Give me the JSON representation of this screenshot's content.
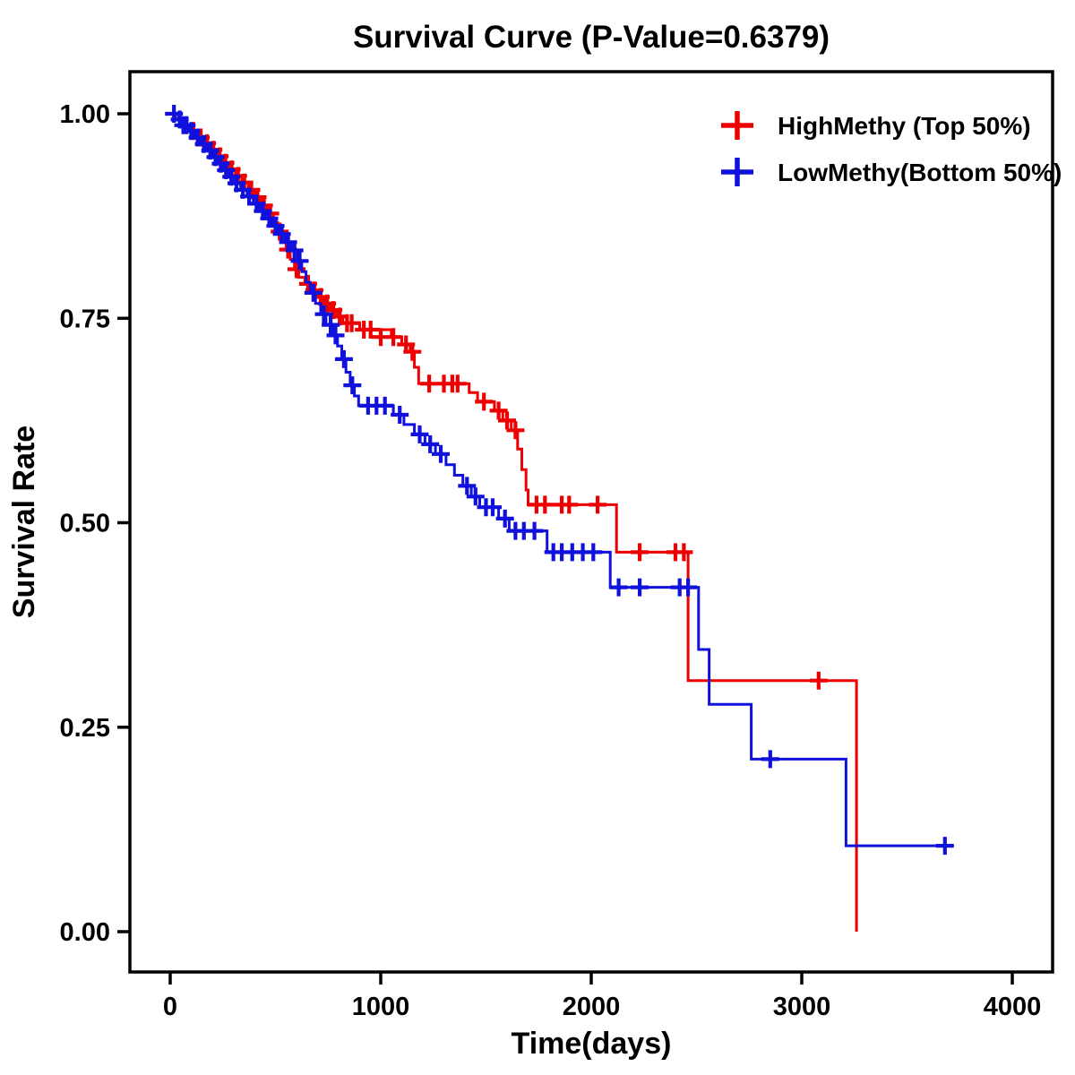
{
  "chart": {
    "title": "Survival Curve (P-Value=0.6379)"
  },
  "chart_data": {
    "type": "line",
    "subtype": "kaplan-meier-step",
    "title": "Survival Curve (P-Value=0.6379)",
    "p_value": 0.6379,
    "xlabel": "Time(days)",
    "ylabel": "Survival Rate",
    "xlim": [
      0,
      4000
    ],
    "ylim": [
      0.0,
      1.0
    ],
    "x_ticks": [
      0,
      1000,
      2000,
      3000,
      4000
    ],
    "y_ticks": [
      0.0,
      0.25,
      0.5,
      0.75,
      1.0
    ],
    "y_tick_labels": [
      "0.00",
      "0.25",
      "0.50",
      "0.75",
      "1.00"
    ],
    "grid": false,
    "legend_position": "top-right",
    "series": [
      {
        "name": "HighMethy (Top 50%)",
        "color": "#ee0000",
        "steps": [
          [
            0,
            1.0
          ],
          [
            40,
            0.993
          ],
          [
            70,
            0.986
          ],
          [
            100,
            0.979
          ],
          [
            130,
            0.971
          ],
          [
            160,
            0.964
          ],
          [
            190,
            0.956
          ],
          [
            220,
            0.948
          ],
          [
            250,
            0.94
          ],
          [
            280,
            0.932
          ],
          [
            310,
            0.924
          ],
          [
            340,
            0.916
          ],
          [
            370,
            0.907
          ],
          [
            400,
            0.898
          ],
          [
            430,
            0.888
          ],
          [
            460,
            0.878
          ],
          [
            490,
            0.867
          ],
          [
            510,
            0.856
          ],
          [
            530,
            0.845
          ],
          [
            550,
            0.834
          ],
          [
            570,
            0.822
          ],
          [
            590,
            0.81
          ],
          [
            610,
            0.8
          ],
          [
            640,
            0.792
          ],
          [
            670,
            0.784
          ],
          [
            700,
            0.776
          ],
          [
            730,
            0.768
          ],
          [
            760,
            0.76
          ],
          [
            790,
            0.752
          ],
          [
            820,
            0.744
          ],
          [
            900,
            0.736
          ],
          [
            1050,
            0.727
          ],
          [
            1100,
            0.718
          ],
          [
            1140,
            0.709
          ],
          [
            1160,
            0.69
          ],
          [
            1180,
            0.67
          ],
          [
            1420,
            0.659
          ],
          [
            1460,
            0.648
          ],
          [
            1540,
            0.637
          ],
          [
            1580,
            0.625
          ],
          [
            1620,
            0.613
          ],
          [
            1650,
            0.59
          ],
          [
            1670,
            0.565
          ],
          [
            1690,
            0.54
          ],
          [
            1700,
            0.522
          ],
          [
            2120,
            0.464
          ],
          [
            2460,
            0.307
          ],
          [
            3260,
            0.0
          ]
        ],
        "censors": [
          [
            110,
            0.979
          ],
          [
            145,
            0.971
          ],
          [
            175,
            0.964
          ],
          [
            205,
            0.956
          ],
          [
            235,
            0.948
          ],
          [
            262,
            0.94
          ],
          [
            292,
            0.932
          ],
          [
            322,
            0.924
          ],
          [
            352,
            0.916
          ],
          [
            385,
            0.907
          ],
          [
            415,
            0.898
          ],
          [
            445,
            0.888
          ],
          [
            475,
            0.878
          ],
          [
            520,
            0.856
          ],
          [
            560,
            0.834
          ],
          [
            600,
            0.81
          ],
          [
            655,
            0.792
          ],
          [
            685,
            0.784
          ],
          [
            715,
            0.776
          ],
          [
            745,
            0.768
          ],
          [
            775,
            0.76
          ],
          [
            805,
            0.752
          ],
          [
            840,
            0.744
          ],
          [
            862,
            0.744
          ],
          [
            920,
            0.736
          ],
          [
            952,
            0.736
          ],
          [
            1000,
            0.727
          ],
          [
            1060,
            0.727
          ],
          [
            1120,
            0.718
          ],
          [
            1150,
            0.709
          ],
          [
            1230,
            0.67
          ],
          [
            1300,
            0.67
          ],
          [
            1340,
            0.67
          ],
          [
            1365,
            0.67
          ],
          [
            1490,
            0.648
          ],
          [
            1560,
            0.637
          ],
          [
            1600,
            0.625
          ],
          [
            1640,
            0.613
          ],
          [
            1740,
            0.522
          ],
          [
            1780,
            0.522
          ],
          [
            1860,
            0.522
          ],
          [
            1895,
            0.522
          ],
          [
            2030,
            0.522
          ],
          [
            2230,
            0.464
          ],
          [
            2400,
            0.464
          ],
          [
            2440,
            0.464
          ],
          [
            3080,
            0.307
          ]
        ]
      },
      {
        "name": "LowMethy(Bottom 50%)",
        "color": "#1111dd",
        "steps": [
          [
            0,
            1.0
          ],
          [
            25,
            0.993
          ],
          [
            55,
            0.986
          ],
          [
            85,
            0.979
          ],
          [
            115,
            0.971
          ],
          [
            145,
            0.963
          ],
          [
            175,
            0.955
          ],
          [
            205,
            0.947
          ],
          [
            230,
            0.939
          ],
          [
            255,
            0.931
          ],
          [
            280,
            0.923
          ],
          [
            305,
            0.915
          ],
          [
            335,
            0.907
          ],
          [
            365,
            0.899
          ],
          [
            395,
            0.89
          ],
          [
            425,
            0.881
          ],
          [
            455,
            0.872
          ],
          [
            485,
            0.863
          ],
          [
            515,
            0.853
          ],
          [
            545,
            0.843
          ],
          [
            575,
            0.833
          ],
          [
            605,
            0.82
          ],
          [
            625,
            0.807
          ],
          [
            645,
            0.794
          ],
          [
            665,
            0.781
          ],
          [
            690,
            0.768
          ],
          [
            715,
            0.755
          ],
          [
            740,
            0.742
          ],
          [
            770,
            0.729
          ],
          [
            795,
            0.716
          ],
          [
            815,
            0.7
          ],
          [
            835,
            0.684
          ],
          [
            855,
            0.668
          ],
          [
            875,
            0.655
          ],
          [
            895,
            0.643
          ],
          [
            1060,
            0.632
          ],
          [
            1110,
            0.62
          ],
          [
            1160,
            0.608
          ],
          [
            1210,
            0.596
          ],
          [
            1260,
            0.584
          ],
          [
            1310,
            0.571
          ],
          [
            1350,
            0.558
          ],
          [
            1390,
            0.545
          ],
          [
            1430,
            0.532
          ],
          [
            1470,
            0.519
          ],
          [
            1560,
            0.505
          ],
          [
            1610,
            0.49
          ],
          [
            1790,
            0.464
          ],
          [
            2090,
            0.421
          ],
          [
            2510,
            0.345
          ],
          [
            2560,
            0.278
          ],
          [
            2760,
            0.211
          ],
          [
            3210,
            0.105
          ],
          [
            3700,
            0.105
          ]
        ],
        "censors": [
          [
            18,
            1.0
          ],
          [
            45,
            0.993
          ],
          [
            62,
            0.986
          ],
          [
            78,
            0.986
          ],
          [
            100,
            0.979
          ],
          [
            130,
            0.971
          ],
          [
            160,
            0.963
          ],
          [
            190,
            0.955
          ],
          [
            215,
            0.947
          ],
          [
            240,
            0.939
          ],
          [
            265,
            0.931
          ],
          [
            290,
            0.923
          ],
          [
            315,
            0.915
          ],
          [
            345,
            0.907
          ],
          [
            375,
            0.899
          ],
          [
            410,
            0.89
          ],
          [
            440,
            0.881
          ],
          [
            470,
            0.872
          ],
          [
            500,
            0.863
          ],
          [
            530,
            0.853
          ],
          [
            560,
            0.843
          ],
          [
            590,
            0.833
          ],
          [
            615,
            0.82
          ],
          [
            680,
            0.781
          ],
          [
            730,
            0.755
          ],
          [
            762,
            0.742
          ],
          [
            785,
            0.729
          ],
          [
            825,
            0.7
          ],
          [
            865,
            0.668
          ],
          [
            940,
            0.643
          ],
          [
            980,
            0.643
          ],
          [
            1020,
            0.643
          ],
          [
            1090,
            0.632
          ],
          [
            1185,
            0.608
          ],
          [
            1235,
            0.596
          ],
          [
            1285,
            0.584
          ],
          [
            1410,
            0.545
          ],
          [
            1450,
            0.532
          ],
          [
            1500,
            0.519
          ],
          [
            1532,
            0.519
          ],
          [
            1590,
            0.505
          ],
          [
            1640,
            0.49
          ],
          [
            1680,
            0.49
          ],
          [
            1730,
            0.49
          ],
          [
            1820,
            0.464
          ],
          [
            1860,
            0.464
          ],
          [
            1910,
            0.464
          ],
          [
            1960,
            0.464
          ],
          [
            2010,
            0.464
          ],
          [
            2130,
            0.421
          ],
          [
            2230,
            0.421
          ],
          [
            2420,
            0.421
          ],
          [
            2460,
            0.421
          ],
          [
            2850,
            0.211
          ],
          [
            3680,
            0.105
          ]
        ]
      }
    ]
  }
}
